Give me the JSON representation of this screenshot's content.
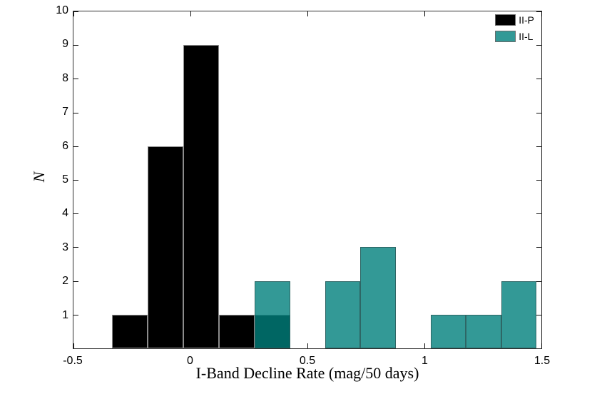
{
  "figure": {
    "background": "#ffffff",
    "axis_color": "#2e2e2e"
  },
  "chart_data": {
    "type": "bar",
    "subtype": "histogram",
    "title": "",
    "xlabel": "I-Band Decline Rate (mag/50 days)",
    "ylabel": "N",
    "xlim": [
      -0.5,
      1.5
    ],
    "ylim": [
      0,
      10
    ],
    "grid": false,
    "legend_position": "top-right-inside",
    "x_ticks": [
      {
        "value": -0.5,
        "label": "-0.5"
      },
      {
        "value": 0,
        "label": "0"
      },
      {
        "value": 0.5,
        "label": "0.5"
      },
      {
        "value": 1,
        "label": "1"
      },
      {
        "value": 1.5,
        "label": "1.5"
      }
    ],
    "y_ticks": [
      {
        "value": 1,
        "label": "1"
      },
      {
        "value": 2,
        "label": "2"
      },
      {
        "value": 3,
        "label": "3"
      },
      {
        "value": 4,
        "label": "4"
      },
      {
        "value": 5,
        "label": "5"
      },
      {
        "value": 6,
        "label": "6"
      },
      {
        "value": 7,
        "label": "7"
      },
      {
        "value": 8,
        "label": "8"
      },
      {
        "value": 9,
        "label": "9"
      },
      {
        "value": 10,
        "label": "10"
      }
    ],
    "legend": [
      {
        "label": "II-P",
        "swatch_color": "#000000"
      },
      {
        "label": "II-L",
        "swatch_color": "#339996"
      }
    ],
    "series": [
      {
        "name": "II-P",
        "fill": "#000000",
        "edge": "#8c8c8c",
        "bin_width": 0.152,
        "bars": [
          {
            "x0": -0.335,
            "x1": -0.183,
            "count": 1
          },
          {
            "x0": -0.183,
            "x1": -0.03,
            "count": 6
          },
          {
            "x0": -0.03,
            "x1": 0.122,
            "count": 9
          },
          {
            "x0": 0.122,
            "x1": 0.275,
            "count": 1
          },
          {
            "x0": 0.275,
            "x1": 0.427,
            "count": 1
          }
        ]
      },
      {
        "name": "II-L",
        "fill": "rgba(0,128,124,0.8)",
        "edge": "rgba(45,75,75,0.65)",
        "bin_width": 0.15,
        "bars": [
          {
            "x0": 0.275,
            "x1": 0.4255,
            "count": 2
          },
          {
            "x0": 0.576,
            "x1": 0.7265,
            "count": 2
          },
          {
            "x0": 0.7265,
            "x1": 0.877,
            "count": 3
          },
          {
            "x0": 1.0275,
            "x1": 1.178,
            "count": 1
          },
          {
            "x0": 1.178,
            "x1": 1.3285,
            "count": 1
          },
          {
            "x0": 1.3285,
            "x1": 1.479,
            "count": 2
          }
        ]
      }
    ]
  }
}
